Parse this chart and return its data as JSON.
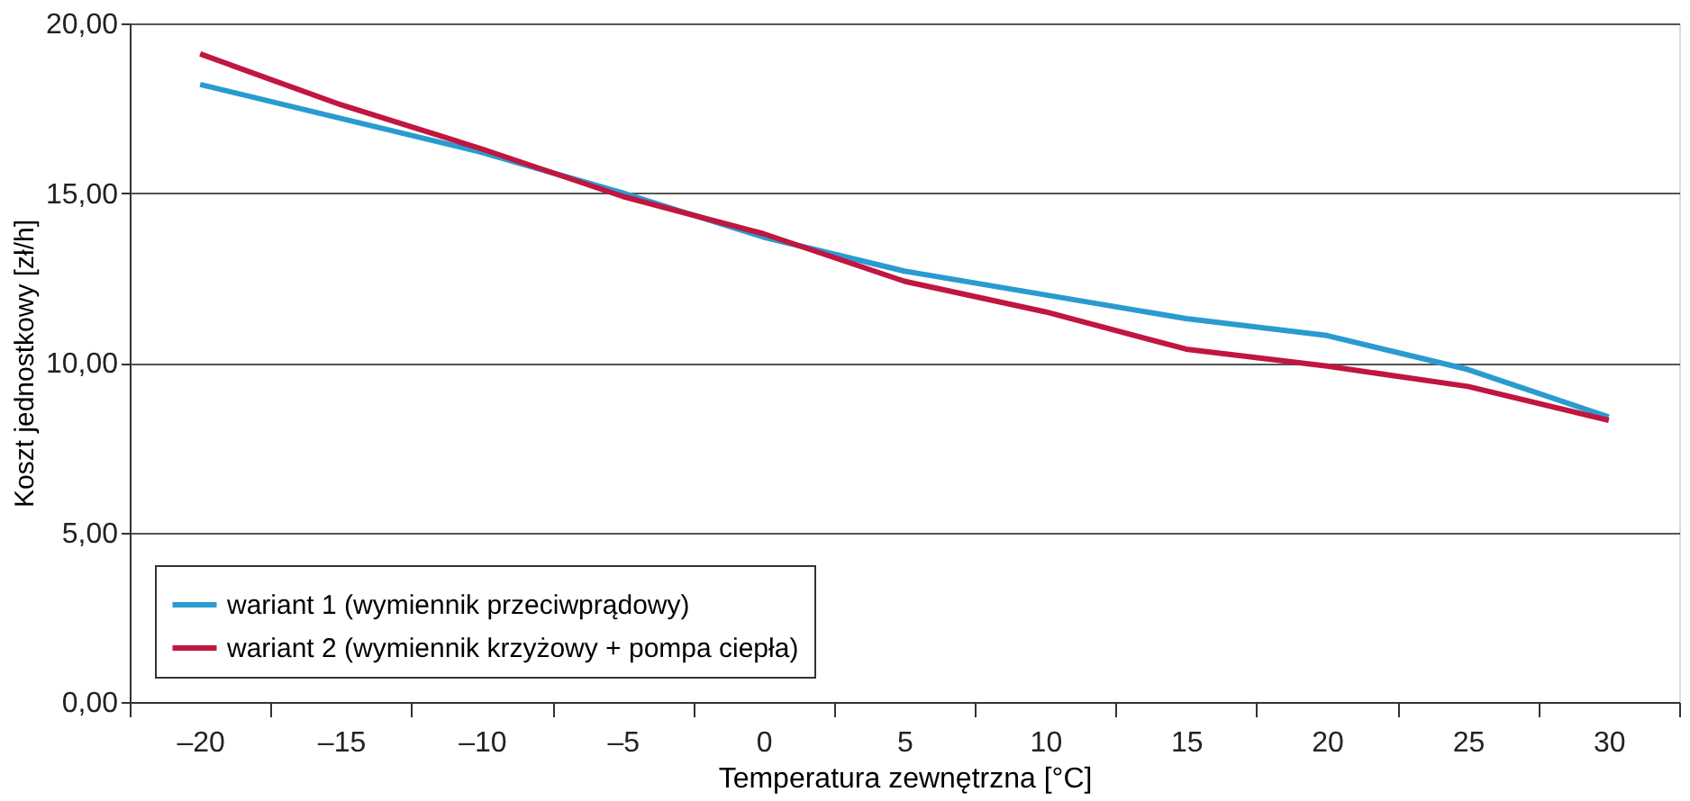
{
  "chart_data": {
    "type": "line",
    "xlabel": "Temperatura zewnętrzna [°C]",
    "ylabel": "Koszt jednostkowy [zł/h]",
    "categories": [
      "–20",
      "–15",
      "–10",
      "–5",
      "0",
      "5",
      "10",
      "15",
      "20",
      "25",
      "30"
    ],
    "series": [
      {
        "name": "wariant 1 (wymiennik przeciwprądowy)",
        "color": "#2a9bd0",
        "values": [
          18.2,
          17.2,
          16.2,
          15.0,
          13.7,
          12.7,
          12.0,
          11.3,
          10.8,
          9.8,
          8.4
        ]
      },
      {
        "name": "wariant 2 (wymiennik krzyżowy + pompa ciepła)",
        "color": "#c0163f",
        "values": [
          19.1,
          17.6,
          16.3,
          14.9,
          13.8,
          12.4,
          11.5,
          10.4,
          9.9,
          9.3,
          8.3
        ]
      }
    ],
    "ylim": [
      0,
      20
    ],
    "yticks": [
      {
        "value": 0,
        "label": "0,00"
      },
      {
        "value": 5,
        "label": "5,00"
      },
      {
        "value": 10,
        "label": "10,00"
      },
      {
        "value": 15,
        "label": "15,00"
      },
      {
        "value": 20,
        "label": "20,00"
      }
    ],
    "grid": "y",
    "legend": "bottom left",
    "line_style": "solid",
    "marker": "none"
  }
}
